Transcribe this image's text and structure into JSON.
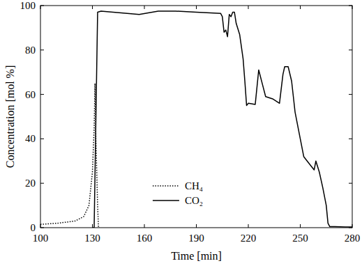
{
  "chart_data": {
    "type": "line",
    "x_label": "Time [min]",
    "y_label": "Concentration [mol %]",
    "xlim": [
      100,
      280
    ],
    "xticks": [
      100,
      130,
      160,
      190,
      220,
      250,
      280
    ],
    "ylim": [
      0,
      100
    ],
    "yticks": [
      0,
      20,
      40,
      60,
      80,
      100
    ],
    "grid": false,
    "legend": "lower left",
    "series": [
      {
        "name": "CH₄",
        "color": "#000000",
        "line_style": "dotted",
        "x": [
          100,
          110,
          120,
          125,
          128,
          130,
          131,
          131.5,
          132,
          133,
          133.5,
          134
        ],
        "values": [
          1.5,
          2,
          3,
          5,
          10,
          25,
          45,
          65,
          40,
          10,
          0,
          0
        ]
      },
      {
        "name": "CO₂",
        "color": "#000000",
        "line_style": "solid",
        "x": [
          130,
          131,
          133,
          135,
          157,
          168,
          178,
          190,
          204,
          205,
          206,
          207,
          208,
          209,
          210,
          211,
          212,
          213,
          215,
          217,
          218,
          219,
          220,
          224,
          226,
          228,
          230,
          234,
          238,
          240,
          241,
          243,
          245,
          246,
          247,
          250,
          252,
          256,
          258,
          259,
          261,
          263,
          265,
          266,
          267,
          270,
          276,
          280
        ],
        "values": [
          0,
          0,
          97,
          97.5,
          96,
          97.5,
          97.5,
          97,
          96.5,
          95,
          88,
          89,
          86,
          96,
          95,
          97,
          97,
          92,
          87,
          76,
          66,
          55,
          56,
          55.5,
          71,
          65,
          59,
          58,
          56,
          69,
          72.5,
          72.5,
          66,
          59,
          52,
          40,
          32,
          28,
          26,
          30,
          25,
          18,
          10,
          2,
          0.5,
          0.5,
          0.3,
          0.3
        ]
      }
    ]
  }
}
